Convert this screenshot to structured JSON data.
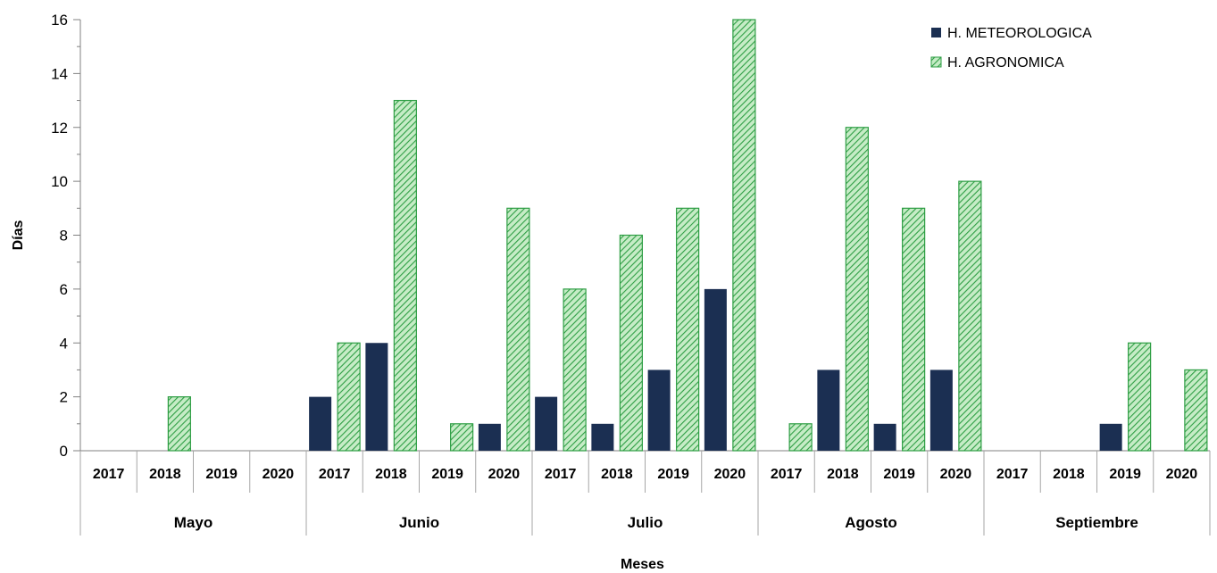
{
  "chart_data": {
    "type": "bar",
    "title": "",
    "xlabel": "Meses",
    "ylabel": "Días",
    "ylim": [
      0,
      16
    ],
    "yticks": [
      0,
      2,
      4,
      6,
      8,
      10,
      12,
      14,
      16
    ],
    "grid": false,
    "legend_position": "top-right",
    "groups": [
      {
        "month": "Mayo",
        "years": [
          "2017",
          "2018",
          "2019",
          "2020"
        ]
      },
      {
        "month": "Junio",
        "years": [
          "2017",
          "2018",
          "2019",
          "2020"
        ]
      },
      {
        "month": "Julio",
        "years": [
          "2017",
          "2018",
          "2019",
          "2020"
        ]
      },
      {
        "month": "Agosto",
        "years": [
          "2017",
          "2018",
          "2019",
          "2020"
        ]
      },
      {
        "month": "Septiembre",
        "years": [
          "2017",
          "2018",
          "2019",
          "2020"
        ]
      }
    ],
    "series": [
      {
        "name": "H. METEOROLOGICA",
        "color": "#1b2f52",
        "fill": "solid",
        "values": [
          0,
          0,
          0,
          0,
          2,
          4,
          0,
          1,
          2,
          1,
          3,
          6,
          0,
          3,
          1,
          3,
          0,
          0,
          1,
          0
        ]
      },
      {
        "name": "H. AGRONOMICA",
        "color": "#2e9e44",
        "fill": "hatched",
        "values": [
          0,
          2,
          0,
          0,
          4,
          13,
          1,
          9,
          6,
          8,
          9,
          16,
          1,
          12,
          9,
          10,
          0,
          0,
          4,
          3
        ]
      }
    ]
  }
}
